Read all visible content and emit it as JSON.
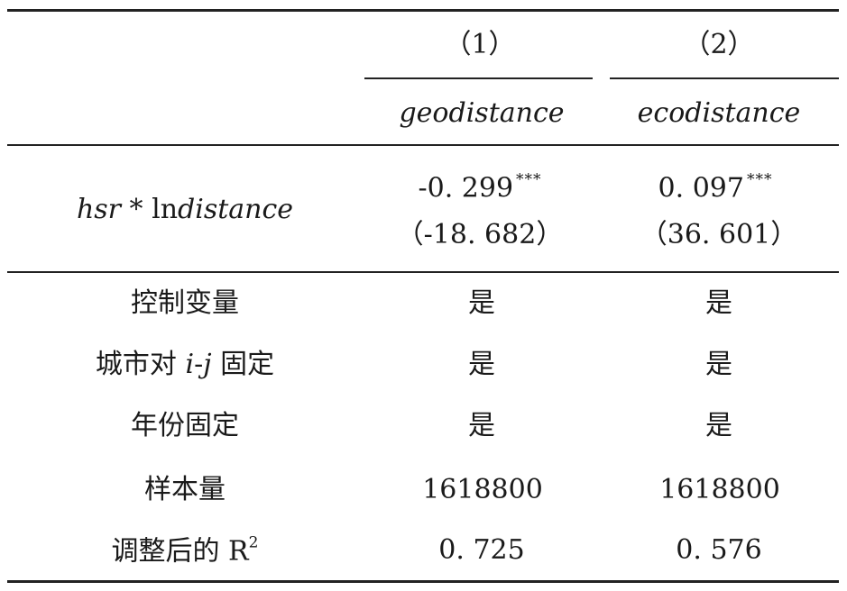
{
  "table": {
    "col_numbers": [
      "（1）",
      "（2）"
    ],
    "dep_vars": [
      "geodistance",
      "ecodistance"
    ],
    "main_row": {
      "label_a": "hsr",
      "label_op": " * ",
      "label_ln": "ln",
      "label_b": "distance",
      "coef_1": "-0. 299",
      "stars_1": "***",
      "coef_2": "0. 097",
      "stars_2": "***",
      "tstat_1": "（-18. 682）",
      "tstat_2": "（36. 601）"
    },
    "controls_label": "控制变量",
    "city_pair_label_pre": "城市对 ",
    "city_pair_label_i": "i",
    "city_pair_label_dash": "-",
    "city_pair_label_j": "j",
    "city_pair_label_post": " 固定",
    "year_fe_label": "年份固定",
    "n_label": "样本量",
    "r2_label_prefix": "调整后的 R",
    "r2_label_sup": "2",
    "yes": "是",
    "n_values": [
      "1618800",
      "1618800"
    ],
    "r2_values": [
      "0. 725",
      "0. 576"
    ]
  }
}
